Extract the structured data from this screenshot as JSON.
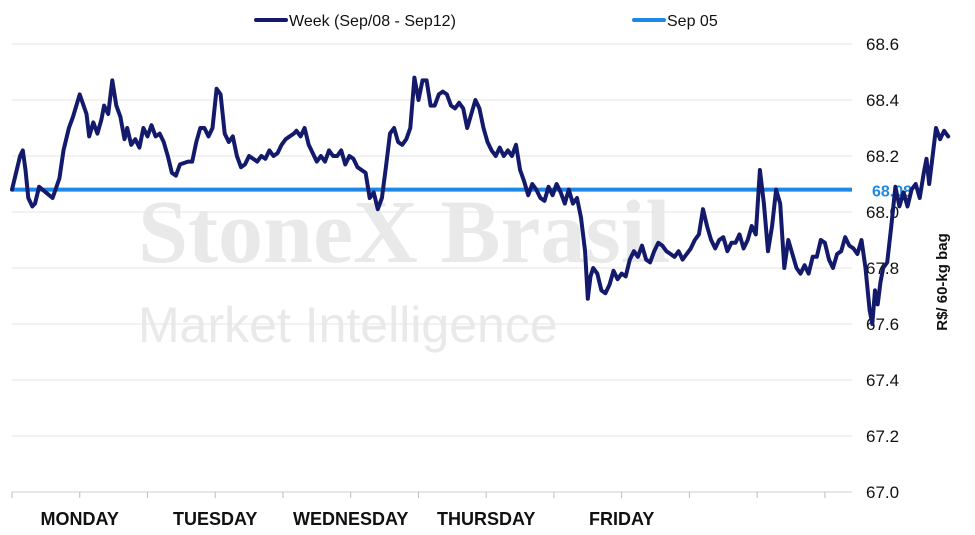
{
  "watermark": {
    "line1": "StoneX Brasil",
    "line2": "Market Intelligence"
  },
  "colors": {
    "week": "#141a6b",
    "reference": "#1e88e5",
    "grid": "#e6e6e6"
  },
  "chart_data": {
    "type": "line",
    "title": "",
    "xlabel": "",
    "ylabel": "R$/ 60-kg bag",
    "ylim": [
      67.0,
      68.6
    ],
    "yticks": [
      "68.6",
      "68.4",
      "68.2",
      "68.0",
      "67.8",
      "67.6",
      "67.4",
      "67.2",
      "67.0"
    ],
    "categories": [
      "MONDAY",
      "TUESDAY",
      "WEDNESDAY",
      "THURSDAY",
      "FRIDAY"
    ],
    "grid": true,
    "legend_position": "top",
    "series": [
      {
        "name": "Week (Sep/08 - Sep12)",
        "values": [
          [
            0.0,
            68.08
          ],
          [
            0.06,
            68.2
          ],
          [
            0.08,
            68.22
          ],
          [
            0.1,
            68.15
          ],
          [
            0.12,
            68.05
          ],
          [
            0.15,
            68.02
          ],
          [
            0.17,
            68.03
          ],
          [
            0.2,
            68.09
          ],
          [
            0.25,
            68.07
          ],
          [
            0.3,
            68.05
          ],
          [
            0.35,
            68.12
          ],
          [
            0.38,
            68.22
          ],
          [
            0.42,
            68.3
          ],
          [
            0.45,
            68.34
          ],
          [
            0.5,
            68.42
          ],
          [
            0.55,
            68.35
          ],
          [
            0.57,
            68.27
          ],
          [
            0.6,
            68.32
          ],
          [
            0.63,
            68.28
          ],
          [
            0.66,
            68.33
          ],
          [
            0.68,
            68.38
          ],
          [
            0.71,
            68.35
          ],
          [
            0.74,
            68.47
          ],
          [
            0.77,
            68.38
          ],
          [
            0.8,
            68.34
          ],
          [
            0.83,
            68.26
          ],
          [
            0.85,
            68.3
          ],
          [
            0.88,
            68.24
          ],
          [
            0.91,
            68.26
          ],
          [
            0.94,
            68.23
          ],
          [
            0.97,
            68.3
          ],
          [
            1.0,
            68.27
          ],
          [
            1.03,
            68.31
          ],
          [
            1.06,
            68.27
          ],
          [
            1.09,
            68.28
          ],
          [
            1.12,
            68.25
          ],
          [
            1.15,
            68.2
          ],
          [
            1.18,
            68.14
          ],
          [
            1.21,
            68.13
          ],
          [
            1.24,
            68.17
          ],
          [
            1.3,
            68.18
          ],
          [
            1.33,
            68.18
          ],
          [
            1.36,
            68.25
          ],
          [
            1.39,
            68.3
          ],
          [
            1.42,
            68.3
          ],
          [
            1.45,
            68.27
          ],
          [
            1.48,
            68.3
          ],
          [
            1.51,
            68.44
          ],
          [
            1.54,
            68.42
          ],
          [
            1.57,
            68.28
          ],
          [
            1.6,
            68.25
          ],
          [
            1.63,
            68.27
          ],
          [
            1.66,
            68.2
          ],
          [
            1.69,
            68.16
          ],
          [
            1.72,
            68.17
          ],
          [
            1.75,
            68.2
          ],
          [
            1.78,
            68.19
          ],
          [
            1.81,
            68.18
          ],
          [
            1.84,
            68.2
          ],
          [
            1.87,
            68.19
          ],
          [
            1.9,
            68.22
          ],
          [
            1.93,
            68.2
          ],
          [
            1.96,
            68.21
          ],
          [
            1.99,
            68.24
          ],
          [
            2.02,
            68.26
          ],
          [
            2.05,
            68.27
          ],
          [
            2.08,
            68.28
          ],
          [
            2.1,
            68.29
          ],
          [
            2.13,
            68.27
          ],
          [
            2.16,
            68.3
          ],
          [
            2.19,
            68.24
          ],
          [
            2.22,
            68.21
          ],
          [
            2.25,
            68.18
          ],
          [
            2.28,
            68.2
          ],
          [
            2.31,
            68.18
          ],
          [
            2.34,
            68.22
          ],
          [
            2.37,
            68.2
          ],
          [
            2.4,
            68.2
          ],
          [
            2.43,
            68.22
          ],
          [
            2.46,
            68.17
          ],
          [
            2.49,
            68.2
          ],
          [
            2.52,
            68.19
          ],
          [
            2.55,
            68.16
          ],
          [
            2.58,
            68.15
          ],
          [
            2.61,
            68.14
          ],
          [
            2.64,
            68.05
          ],
          [
            2.67,
            68.07
          ],
          [
            2.7,
            68.01
          ],
          [
            2.73,
            68.05
          ],
          [
            2.76,
            68.16
          ],
          [
            2.79,
            68.28
          ],
          [
            2.82,
            68.3
          ],
          [
            2.85,
            68.25
          ],
          [
            2.88,
            68.24
          ],
          [
            2.91,
            68.26
          ],
          [
            2.94,
            68.3
          ],
          [
            2.97,
            68.48
          ],
          [
            3.0,
            68.4
          ],
          [
            3.03,
            68.47
          ],
          [
            3.06,
            68.47
          ],
          [
            3.09,
            68.38
          ],
          [
            3.12,
            68.38
          ],
          [
            3.15,
            68.42
          ],
          [
            3.18,
            68.43
          ],
          [
            3.21,
            68.42
          ],
          [
            3.24,
            68.38
          ],
          [
            3.27,
            68.37
          ],
          [
            3.3,
            68.39
          ],
          [
            3.33,
            68.37
          ],
          [
            3.36,
            68.3
          ],
          [
            3.39,
            68.35
          ],
          [
            3.42,
            68.4
          ],
          [
            3.45,
            68.37
          ],
          [
            3.48,
            68.3
          ],
          [
            3.51,
            68.25
          ],
          [
            3.54,
            68.22
          ],
          [
            3.57,
            68.2
          ],
          [
            3.6,
            68.23
          ],
          [
            3.63,
            68.2
          ],
          [
            3.66,
            68.22
          ],
          [
            3.69,
            68.2
          ],
          [
            3.72,
            68.24
          ],
          [
            3.75,
            68.15
          ],
          [
            3.78,
            68.11
          ],
          [
            3.81,
            68.06
          ],
          [
            3.84,
            68.1
          ],
          [
            3.87,
            68.08
          ],
          [
            3.9,
            68.05
          ],
          [
            3.93,
            68.04
          ],
          [
            3.96,
            68.09
          ],
          [
            3.99,
            68.06
          ],
          [
            4.02,
            68.1
          ],
          [
            4.05,
            68.07
          ],
          [
            4.08,
            68.03
          ],
          [
            4.11,
            68.08
          ],
          [
            4.14,
            68.03
          ],
          [
            4.17,
            68.05
          ],
          [
            4.2,
            67.98
          ],
          [
            4.23,
            67.86
          ],
          [
            4.25,
            67.69
          ],
          [
            4.27,
            67.77
          ],
          [
            4.29,
            67.8
          ],
          [
            4.32,
            67.78
          ],
          [
            4.35,
            67.72
          ],
          [
            4.38,
            67.71
          ],
          [
            4.41,
            67.74
          ],
          [
            4.44,
            67.79
          ],
          [
            4.47,
            67.76
          ],
          [
            4.5,
            67.78
          ],
          [
            4.53,
            67.77
          ],
          [
            4.56,
            67.83
          ],
          [
            4.59,
            67.86
          ],
          [
            4.62,
            67.84
          ],
          [
            4.65,
            67.88
          ],
          [
            4.68,
            67.83
          ],
          [
            4.71,
            67.82
          ],
          [
            4.74,
            67.86
          ],
          [
            4.77,
            67.89
          ],
          [
            4.8,
            67.88
          ],
          [
            4.83,
            67.86
          ],
          [
            4.86,
            67.85
          ],
          [
            4.89,
            67.84
          ],
          [
            4.92,
            67.86
          ],
          [
            4.95,
            67.83
          ],
          [
            4.98,
            67.85
          ],
          [
            5.01,
            67.87
          ],
          [
            5.04,
            67.9
          ],
          [
            5.07,
            67.92
          ],
          [
            5.1,
            68.01
          ],
          [
            5.13,
            67.95
          ],
          [
            5.16,
            67.9
          ],
          [
            5.19,
            67.87
          ],
          [
            5.22,
            67.9
          ],
          [
            5.25,
            67.91
          ],
          [
            5.28,
            67.86
          ],
          [
            5.31,
            67.89
          ],
          [
            5.34,
            67.89
          ],
          [
            5.37,
            67.92
          ],
          [
            5.4,
            67.87
          ],
          [
            5.43,
            67.9
          ],
          [
            5.46,
            67.95
          ],
          [
            5.49,
            67.92
          ],
          [
            5.52,
            68.15
          ],
          [
            5.55,
            68.03
          ],
          [
            5.58,
            67.86
          ],
          [
            5.61,
            67.95
          ],
          [
            5.64,
            68.08
          ],
          [
            5.67,
            68.03
          ],
          [
            5.7,
            67.8
          ],
          [
            5.73,
            67.9
          ],
          [
            5.76,
            67.85
          ],
          [
            5.79,
            67.8
          ],
          [
            5.82,
            67.78
          ],
          [
            5.85,
            67.81
          ],
          [
            5.88,
            67.78
          ],
          [
            5.91,
            67.84
          ],
          [
            5.94,
            67.84
          ],
          [
            5.97,
            67.9
          ],
          [
            6.0,
            67.89
          ],
          [
            6.03,
            67.83
          ],
          [
            6.06,
            67.8
          ],
          [
            6.09,
            67.85
          ],
          [
            6.12,
            67.86
          ],
          [
            6.15,
            67.91
          ],
          [
            6.18,
            67.88
          ],
          [
            6.21,
            67.87
          ],
          [
            6.24,
            67.85
          ],
          [
            6.27,
            67.9
          ],
          [
            6.3,
            67.8
          ],
          [
            6.33,
            67.65
          ],
          [
            6.35,
            67.6
          ],
          [
            6.37,
            67.72
          ],
          [
            6.39,
            67.67
          ],
          [
            6.41,
            67.75
          ],
          [
            6.43,
            67.8
          ],
          [
            6.46,
            67.82
          ],
          [
            6.49,
            67.95
          ],
          [
            6.52,
            68.09
          ],
          [
            6.55,
            68.02
          ],
          [
            6.58,
            68.07
          ],
          [
            6.61,
            68.02
          ],
          [
            6.64,
            68.08
          ],
          [
            6.67,
            68.1
          ],
          [
            6.7,
            68.05
          ],
          [
            6.73,
            68.14
          ],
          [
            6.75,
            68.19
          ],
          [
            6.77,
            68.1
          ],
          [
            6.8,
            68.22
          ],
          [
            6.82,
            68.3
          ],
          [
            6.85,
            68.26
          ],
          [
            6.88,
            68.29
          ],
          [
            6.91,
            68.27
          ]
        ]
      },
      {
        "name": "Sep 05",
        "values": 68.08
      }
    ],
    "reference_label": "68.08"
  }
}
